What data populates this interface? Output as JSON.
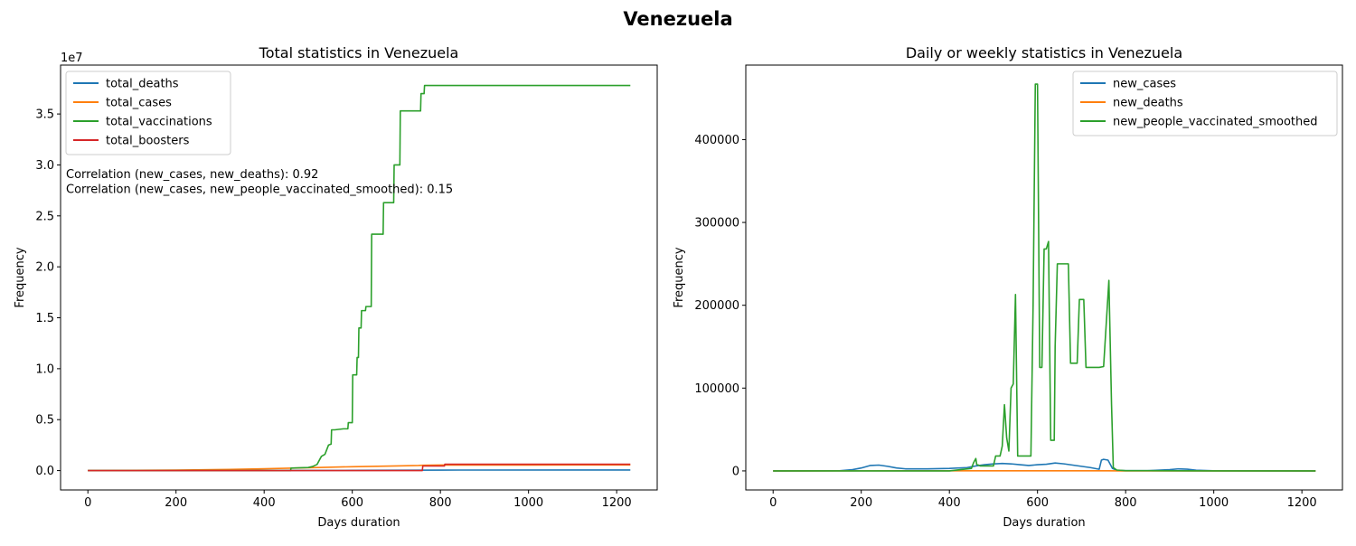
{
  "suptitle": "Venezuela",
  "chart_data": [
    {
      "type": "line",
      "title": "Total statistics in Venezuela",
      "xlabel": "Days duration",
      "ylabel": "Frequency",
      "offset_text": "1e7",
      "xlim": [
        -62,
        1292
      ],
      "ylim": [
        -1.9,
        39.8
      ],
      "y_unit": "1e7 scale (values in millions)",
      "xticks": [
        0,
        200,
        400,
        600,
        800,
        1000,
        1200
      ],
      "yticks": [
        0.0,
        5.0,
        10.0,
        15.0,
        20.0,
        25.0,
        30.0,
        35.0
      ],
      "ytick_labels": [
        "0.0",
        "0.5",
        "1.0",
        "1.5",
        "2.0",
        "2.5",
        "3.0",
        "3.5"
      ],
      "legend_position": "upper-left",
      "annotations": [
        "Correlation (new_cases, new_deaths): 0.92",
        "Correlation (new_cases, new_people_vaccinated_smoothed): 0.15"
      ],
      "series": [
        {
          "name": "total_deaths",
          "color": "#1f77b4",
          "x": [
            0,
            200,
            400,
            600,
            800,
            1231
          ],
          "y": [
            0,
            0.002,
            0.01,
            0.02,
            0.05,
            0.058
          ]
        },
        {
          "name": "total_cases",
          "color": "#ff7f0e",
          "x": [
            0,
            200,
            300,
            400,
            500,
            600,
            700,
            750,
            760,
            800,
            1000,
            1231
          ],
          "y": [
            0,
            0.05,
            0.1,
            0.18,
            0.28,
            0.38,
            0.46,
            0.5,
            0.52,
            0.55,
            0.55,
            0.552
          ]
        },
        {
          "name": "total_vaccinations",
          "color": "#2ca02c",
          "x": [
            0,
            200,
            400,
            460,
            461,
            500,
            510,
            520,
            525,
            530,
            538,
            546,
            552,
            553,
            560,
            580,
            590,
            591,
            600,
            601,
            610,
            611,
            614,
            615,
            620,
            621,
            630,
            631,
            643,
            644,
            670,
            671,
            694,
            695,
            708,
            709,
            755,
            756,
            763,
            764,
            770,
            771,
            1231
          ],
          "y": [
            0,
            0,
            0,
            0,
            0.25,
            0.3,
            0.4,
            0.6,
            1.0,
            1.4,
            1.6,
            2.5,
            2.6,
            4.0,
            4.0,
            4.1,
            4.1,
            4.7,
            4.7,
            9.4,
            9.4,
            11.1,
            11.1,
            14.0,
            14.0,
            15.7,
            15.7,
            16.1,
            16.1,
            23.2,
            23.2,
            26.3,
            26.3,
            30.0,
            30.0,
            35.3,
            35.3,
            37.0,
            37.0,
            37.8,
            37.8,
            37.8,
            37.8
          ]
        },
        {
          "name": "total_boosters",
          "color": "#d62728",
          "x": [
            0,
            759,
            760,
            809,
            810,
            1231
          ],
          "y": [
            0,
            0,
            0.45,
            0.45,
            0.62,
            0.62
          ]
        }
      ]
    },
    {
      "type": "line",
      "title": "Daily or weekly statistics in Venezuela",
      "xlabel": "Days duration",
      "ylabel": "Frequency",
      "xlim": [
        -62,
        1292
      ],
      "ylim": [
        -23000,
        490000
      ],
      "xticks": [
        0,
        200,
        400,
        600,
        800,
        1000,
        1200
      ],
      "yticks": [
        0,
        100000,
        200000,
        300000,
        400000
      ],
      "ytick_labels": [
        "0",
        "100000",
        "200000",
        "300000",
        "400000"
      ],
      "legend_position": "upper-right",
      "series": [
        {
          "name": "new_cases",
          "color": "#1f77b4",
          "x": [
            0,
            150,
            180,
            200,
            220,
            240,
            260,
            280,
            300,
            350,
            400,
            440,
            460,
            480,
            500,
            520,
            540,
            560,
            580,
            600,
            620,
            640,
            660,
            680,
            700,
            720,
            740,
            745,
            750,
            760,
            770,
            780,
            800,
            850,
            900,
            920,
            940,
            960,
            1000,
            1231
          ],
          "y": [
            0,
            200,
            1500,
            3500,
            6500,
            7000,
            5500,
            3500,
            2500,
            2500,
            3000,
            4000,
            6000,
            7500,
            8500,
            9000,
            8500,
            7500,
            6500,
            7500,
            8000,
            9500,
            8500,
            7000,
            5500,
            4000,
            2000,
            13000,
            14000,
            13000,
            3000,
            700,
            300,
            300,
            1500,
            2500,
            2000,
            800,
            200,
            0
          ]
        },
        {
          "name": "new_deaths",
          "color": "#ff7f0e",
          "x": [
            0,
            200,
            400,
            460,
            600,
            760,
            800,
            1231
          ],
          "y": [
            0,
            50,
            80,
            100,
            120,
            100,
            20,
            0
          ]
        },
        {
          "name": "new_people_vaccinated_smoothed",
          "color": "#2ca02c",
          "x": [
            0,
            400,
            450,
            455,
            460,
            462,
            470,
            500,
            505,
            515,
            520,
            525,
            530,
            535,
            540,
            545,
            550,
            555,
            560,
            570,
            580,
            585,
            590,
            595,
            600,
            605,
            610,
            615,
            620,
            625,
            630,
            635,
            638,
            640,
            645,
            650,
            655,
            660,
            670,
            675,
            690,
            695,
            705,
            710,
            715,
            720,
            740,
            750,
            762,
            768,
            772,
            780,
            800,
            1000,
            1231
          ],
          "y": [
            0,
            0,
            3000,
            10000,
            15000,
            8000,
            6000,
            6000,
            18000,
            18000,
            30000,
            80000,
            40000,
            24000,
            100000,
            105000,
            213000,
            18000,
            18000,
            18000,
            18000,
            18000,
            200000,
            467000,
            467000,
            125000,
            125000,
            268000,
            268000,
            277000,
            37000,
            37000,
            37000,
            150000,
            250000,
            250000,
            250000,
            250000,
            250000,
            130000,
            130000,
            207000,
            207000,
            125000,
            125000,
            125000,
            125000,
            126000,
            230000,
            80000,
            4000,
            1000,
            300,
            0,
            0
          ]
        }
      ]
    }
  ]
}
